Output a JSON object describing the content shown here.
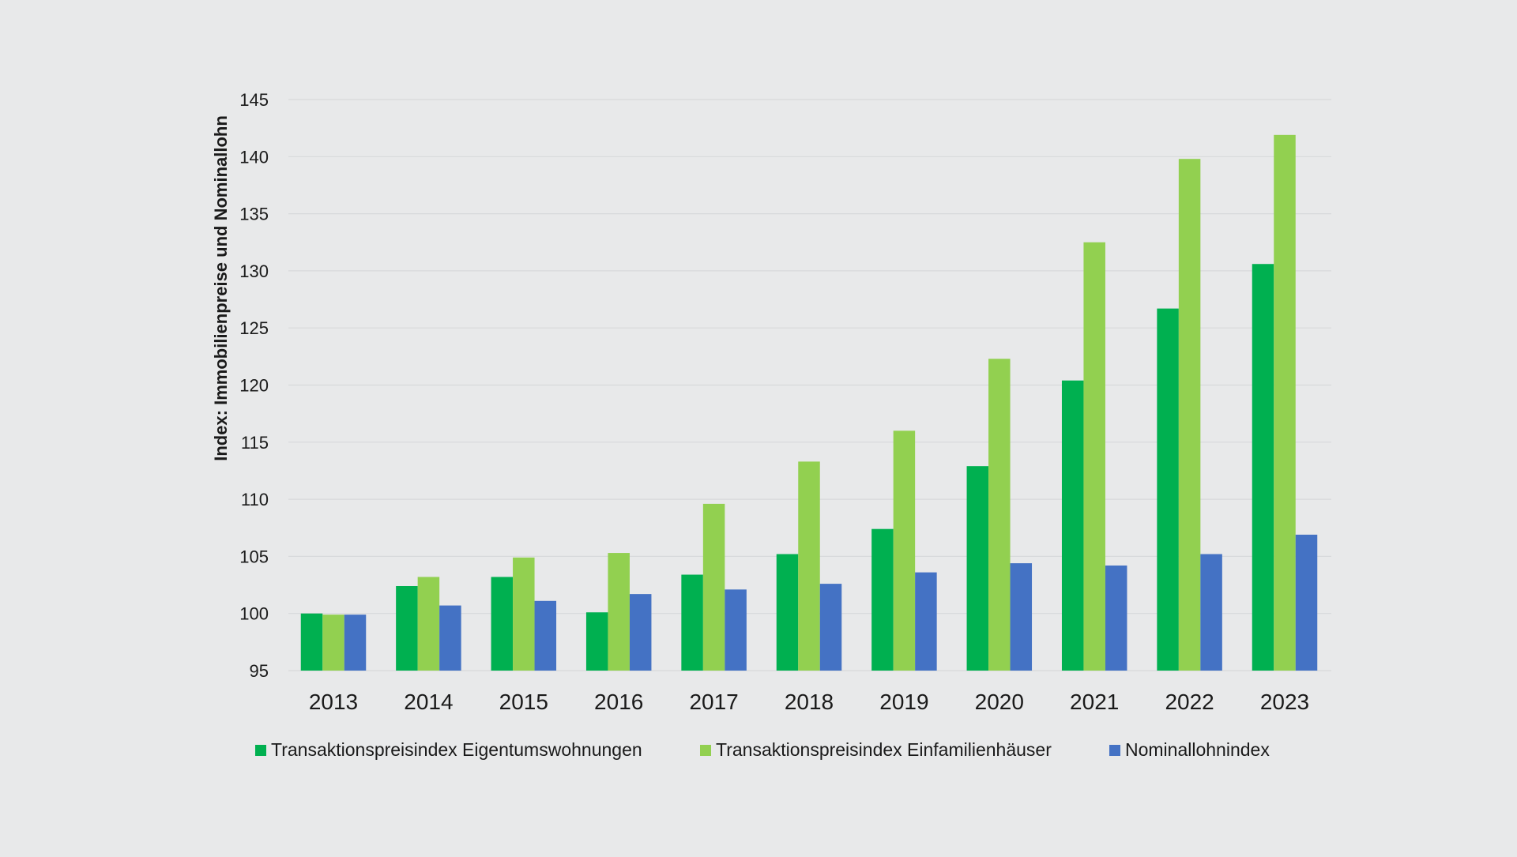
{
  "chart_data": {
    "type": "bar",
    "title": "",
    "xlabel": "",
    "ylabel": "Index: Immobilienpreise und Nominallohn",
    "ylim": [
      95,
      145
    ],
    "yticks": [
      95,
      100,
      105,
      110,
      115,
      120,
      125,
      130,
      135,
      140,
      145
    ],
    "grid": true,
    "legend_position": "bottom",
    "categories": [
      "2013",
      "2014",
      "2015",
      "2016",
      "2017",
      "2018",
      "2019",
      "2020",
      "2021",
      "2022",
      "2023"
    ],
    "series": [
      {
        "name": "Transaktionspreisindex Eigentumswohnungen",
        "color": "#00b050",
        "values": [
          100.0,
          102.4,
          103.2,
          100.1,
          103.4,
          105.2,
          107.4,
          112.9,
          120.4,
          126.7,
          130.6
        ]
      },
      {
        "name": "Transaktionspreisindex Einfamilienhäuser",
        "color": "#92d050",
        "values": [
          99.9,
          103.2,
          104.9,
          105.3,
          109.6,
          113.3,
          116.0,
          122.3,
          132.5,
          139.8,
          141.9
        ]
      },
      {
        "name": "Nominallohnindex",
        "color": "#4472c4",
        "values": [
          99.9,
          100.7,
          101.1,
          101.7,
          102.1,
          102.6,
          103.6,
          104.4,
          104.2,
          105.2,
          106.9
        ]
      }
    ]
  }
}
